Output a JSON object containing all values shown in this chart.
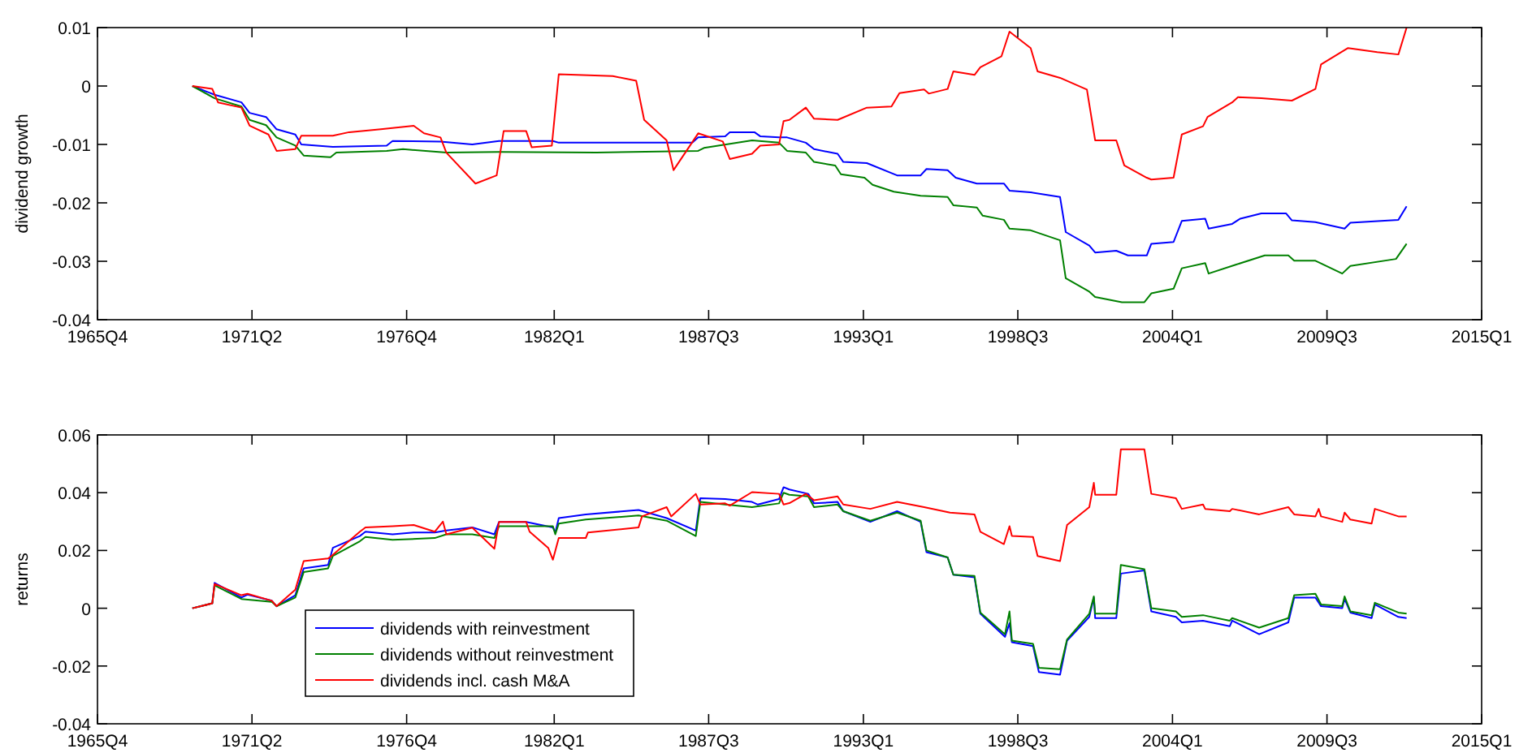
{
  "chart_data": [
    {
      "type": "line",
      "ylabel": "dividend growth",
      "xlim": [
        "1965-10-01",
        "2015-01-01"
      ],
      "ylim": [
        -0.04,
        0.01
      ],
      "yticks": [
        -0.04,
        -0.03,
        -0.02,
        -0.01,
        0,
        0.01
      ],
      "xticks": [
        {
          "value": "1965-10-01",
          "label": "1965Q4"
        },
        {
          "value": "1971-04-01",
          "label": "1971Q2"
        },
        {
          "value": "1976-10-01",
          "label": "1976Q4"
        },
        {
          "value": "1982-01-01",
          "label": "1982Q1"
        },
        {
          "value": "1987-07-01",
          "label": "1987Q3"
        },
        {
          "value": "1993-01-01",
          "label": "1993Q1"
        },
        {
          "value": "1998-07-01",
          "label": "1998Q3"
        },
        {
          "value": "2004-01-01",
          "label": "2004Q1"
        },
        {
          "value": "2009-07-01",
          "label": "2009Q3"
        },
        {
          "value": "2015-01-01",
          "label": "2015Q1"
        }
      ],
      "grid": false,
      "legend": false,
      "marker": "none",
      "line_style": "solid",
      "series": [
        {
          "color": "#0000ff",
          "x": [
            "1969-02-15",
            "1969-12-01",
            "1970-11-15",
            "1971-03-01",
            "1971-10-01",
            "1972-02-15",
            "1972-10-15",
            "1973-01-01",
            "1974-02-15",
            "1976-01-15",
            "1976-04-01",
            "1977-12-15",
            "1979-02-01",
            "1980-01-15",
            "1981-12-15",
            "1982-03-01",
            "1986-12-01",
            "1987-02-15",
            "1988-02-01",
            "1988-04-01",
            "1989-02-15",
            "1989-05-01",
            "1990-01-01",
            "1990-04-15",
            "1990-12-15",
            "1991-04-01",
            "1992-02-01",
            "1992-04-15",
            "1993-02-15",
            "1994-03-15",
            "1995-01-15",
            "1995-04-01",
            "1996-01-01",
            "1996-04-15",
            "1997-01-15",
            "1998-01-01",
            "1998-03-15",
            "1998-12-15",
            "2000-01-01",
            "2000-03-15",
            "2001-01-15",
            "2001-04-01",
            "2002-01-01",
            "2002-06-01",
            "2003-02-01",
            "2003-04-01",
            "2004-01-15",
            "2004-05-01",
            "2005-03-01",
            "2005-04-15",
            "2006-02-15",
            "2006-06-01",
            "2007-03-01",
            "2008-01-15",
            "2008-04-01",
            "2009-02-01",
            "2010-02-15",
            "2010-05-01",
            "2012-01-15",
            "2012-05-01"
          ],
          "values": [
            0,
            -0.0015,
            -0.0028,
            -0.0046,
            -0.0053,
            -0.0074,
            -0.0083,
            -0.01,
            -0.0104,
            -0.0102,
            -0.0094,
            -0.0095,
            -0.01,
            -0.0094,
            -0.0094,
            -0.0097,
            -0.0097,
            -0.0088,
            -0.0086,
            -0.0079,
            -0.0079,
            -0.0086,
            -0.0088,
            -0.0088,
            -0.0097,
            -0.0108,
            -0.0116,
            -0.013,
            -0.0132,
            -0.0153,
            -0.0153,
            -0.0142,
            -0.0144,
            -0.0157,
            -0.0167,
            -0.0167,
            -0.0179,
            -0.0182,
            -0.019,
            -0.025,
            -0.0273,
            -0.0285,
            -0.0282,
            -0.029,
            -0.029,
            -0.027,
            -0.0267,
            -0.0231,
            -0.0227,
            -0.0244,
            -0.0236,
            -0.0227,
            -0.0218,
            -0.0218,
            -0.023,
            -0.0233,
            -0.0244,
            -0.0234,
            -0.0229,
            -0.0206
          ]
        },
        {
          "color": "#008000",
          "x": [
            "1969-02-15",
            "1969-12-01",
            "1970-11-15",
            "1971-03-01",
            "1971-10-01",
            "1972-02-15",
            "1972-10-15",
            "1973-02-01",
            "1974-01-15",
            "1974-04-01",
            "1976-01-15",
            "1976-08-15",
            "1978-03-01",
            "1980-01-15",
            "1983-07-01",
            "1987-02-15",
            "1987-05-01",
            "1989-01-15",
            "1990-01-01",
            "1990-04-15",
            "1990-12-15",
            "1991-04-01",
            "1992-01-01",
            "1992-03-15",
            "1993-01-15",
            "1993-05-01",
            "1994-02-01",
            "1995-01-15",
            "1996-01-01",
            "1996-03-15",
            "1997-01-15",
            "1997-04-01",
            "1998-01-01",
            "1998-03-15",
            "1998-12-15",
            "2000-01-01",
            "2000-03-15",
            "2001-01-15",
            "2001-04-01",
            "2002-03-15",
            "2003-01-01",
            "2003-04-01",
            "2004-01-15",
            "2004-05-01",
            "2005-03-01",
            "2005-04-15",
            "2006-04-01",
            "2007-04-15",
            "2008-02-15",
            "2008-05-01",
            "2009-02-01",
            "2010-01-15",
            "2010-05-01",
            "2011-12-15",
            "2012-05-01"
          ],
          "values": [
            0,
            -0.0021,
            -0.0035,
            -0.0058,
            -0.0067,
            -0.0088,
            -0.0102,
            -0.0119,
            -0.0122,
            -0.0114,
            -0.0111,
            -0.0108,
            -0.0114,
            -0.0113,
            -0.0114,
            -0.0111,
            -0.0106,
            -0.0093,
            -0.0097,
            -0.0111,
            -0.0114,
            -0.013,
            -0.0136,
            -0.0151,
            -0.0157,
            -0.0169,
            -0.0181,
            -0.0188,
            -0.019,
            -0.0204,
            -0.0208,
            -0.0222,
            -0.0229,
            -0.0244,
            -0.0247,
            -0.0264,
            -0.0329,
            -0.0352,
            -0.0361,
            -0.037,
            -0.037,
            -0.0355,
            -0.0347,
            -0.0312,
            -0.0303,
            -0.0321,
            -0.0306,
            -0.029,
            -0.029,
            -0.0299,
            -0.0299,
            -0.0321,
            -0.0308,
            -0.0296,
            -0.027
          ]
        },
        {
          "color": "#ff0000",
          "x": [
            "1969-02-15",
            "1969-11-01",
            "1970-01-15",
            "1970-11-15",
            "1971-03-01",
            "1971-11-01",
            "1972-02-15",
            "1972-10-15",
            "1973-01-01",
            "1974-02-15",
            "1974-09-15",
            "1975-11-01",
            "1977-01-01",
            "1977-05-15",
            "1977-12-15",
            "1978-03-01",
            "1979-03-15",
            "1979-12-15",
            "1980-03-15",
            "1981-01-01",
            "1981-03-15",
            "1981-12-01",
            "1982-03-01",
            "1984-02-01",
            "1984-12-01",
            "1985-03-15",
            "1986-01-01",
            "1986-04-01",
            "1987-02-15",
            "1988-01-01",
            "1988-04-01",
            "1989-01-15",
            "1989-05-01",
            "1990-01-01",
            "1990-03-01",
            "1990-05-15",
            "1990-12-15",
            "1991-04-01",
            "1992-02-01",
            "1993-02-15",
            "1994-01-01",
            "1994-04-15",
            "1995-03-01",
            "1995-05-01",
            "1996-01-01",
            "1996-03-15",
            "1996-12-15",
            "1997-03-01",
            "1997-12-01",
            "1998-03-15",
            "1998-12-15",
            "1999-03-15",
            "2000-01-01",
            "2000-12-15",
            "2001-04-01",
            "2002-01-01",
            "2002-04-15",
            "2003-02-01",
            "2003-04-01",
            "2004-01-15",
            "2004-05-01",
            "2005-02-01",
            "2005-04-01",
            "2006-02-15",
            "2006-05-01",
            "2007-03-01",
            "2008-04-01",
            "2009-02-01",
            "2009-04-15",
            "2010-04-01",
            "2011-04-15",
            "2012-01-15",
            "2012-05-01"
          ],
          "values": [
            0,
            -0.0005,
            -0.0028,
            -0.0037,
            -0.0068,
            -0.0083,
            -0.0111,
            -0.0108,
            -0.0085,
            -0.0085,
            -0.0079,
            -0.0074,
            -0.0068,
            -0.0081,
            -0.0088,
            -0.0114,
            -0.0167,
            -0.0153,
            -0.0077,
            -0.0077,
            -0.0105,
            -0.0102,
            0.002,
            0.0017,
            0.0009,
            -0.0058,
            -0.0093,
            -0.0144,
            -0.0081,
            -0.0095,
            -0.0125,
            -0.0116,
            -0.0102,
            -0.01,
            -0.006,
            -0.0058,
            -0.0037,
            -0.0056,
            -0.0058,
            -0.0037,
            -0.0035,
            -0.0012,
            -0.0006,
            -0.0013,
            -0.0005,
            0.0025,
            0.0019,
            0.0032,
            0.0051,
            0.0093,
            0.0065,
            0.0025,
            0.0014,
            -0.0006,
            -0.0093,
            -0.0093,
            -0.0136,
            -0.0157,
            -0.016,
            -0.0157,
            -0.0083,
            -0.0069,
            -0.0053,
            -0.0028,
            -0.0019,
            -0.0021,
            -0.0025,
            -0.0005,
            0.0037,
            0.0065,
            0.0058,
            0.0054,
            0.01
          ]
        }
      ]
    },
    {
      "type": "line",
      "ylabel": "returns",
      "xlim": [
        "1965-10-01",
        "2015-01-01"
      ],
      "ylim": [
        -0.04,
        0.06
      ],
      "yticks": [
        -0.04,
        -0.02,
        0,
        0.02,
        0.04,
        0.06
      ],
      "xticks": [
        {
          "value": "1965-10-01",
          "label": "1965Q4"
        },
        {
          "value": "1971-04-01",
          "label": "1971Q2"
        },
        {
          "value": "1976-10-01",
          "label": "1976Q4"
        },
        {
          "value": "1982-01-01",
          "label": "1982Q1"
        },
        {
          "value": "1987-07-01",
          "label": "1987Q3"
        },
        {
          "value": "1993-01-01",
          "label": "1993Q1"
        },
        {
          "value": "1998-07-01",
          "label": "1998Q3"
        },
        {
          "value": "2004-01-01",
          "label": "2004Q1"
        },
        {
          "value": "2009-07-01",
          "label": "2009Q3"
        },
        {
          "value": "2015-01-01",
          "label": "2015Q1"
        }
      ],
      "grid": false,
      "legend": "bottom left",
      "marker": "none",
      "line_style": "solid",
      "series": [
        {
          "name": "dividends with reinvestment",
          "color": "#0000ff",
          "x": [
            "1969-02-15",
            "1969-11-01",
            "1969-12-01",
            "1970-11-15",
            "1971-02-01",
            "1971-12-15",
            "1972-02-15",
            "1972-10-15",
            "1973-02-01",
            "1973-12-15",
            "1974-02-15",
            "1975-02-01",
            "1975-04-15",
            "1976-04-01",
            "1977-01-01",
            "1977-10-01",
            "1978-03-01",
            "1979-02-01",
            "1979-11-15",
            "1980-01-15",
            "1981-01-01",
            "1981-12-15",
            "1982-01-15",
            "1982-03-01",
            "1983-02-15",
            "1985-01-01",
            "1986-01-01",
            "1987-01-15",
            "1987-03-15",
            "1988-02-01",
            "1989-01-15",
            "1989-04-01",
            "1990-01-01",
            "1990-03-01",
            "1990-05-15",
            "1991-01-15",
            "1991-04-01",
            "1992-02-01",
            "1992-04-15",
            "1993-04-01",
            "1994-03-15",
            "1995-01-15",
            "1995-04-01",
            "1996-01-01",
            "1996-03-15",
            "1996-12-15",
            "1997-03-01",
            "1998-01-15",
            "1998-03-15",
            "1998-04-15",
            "1999-01-15",
            "1999-04-01",
            "2000-01-01",
            "2000-04-01",
            "2001-01-15",
            "2001-03-15",
            "2001-04-01",
            "2002-01-01",
            "2002-03-01",
            "2003-01-01",
            "2003-04-01",
            "2004-02-15",
            "2004-05-01",
            "2005-02-01",
            "2006-01-15",
            "2006-02-15",
            "2007-02-01",
            "2008-02-15",
            "2008-05-01",
            "2009-02-01",
            "2009-04-15",
            "2010-01-15",
            "2010-02-15",
            "2010-05-01",
            "2011-02-01",
            "2011-03-15",
            "2012-01-15",
            "2012-05-01"
          ],
          "values": [
            0,
            0.0017,
            0.0088,
            0.0037,
            0.0047,
            0.0026,
            0.0007,
            0.0045,
            0.0138,
            0.015,
            0.0209,
            0.025,
            0.0265,
            0.0256,
            0.0262,
            0.0262,
            0.0269,
            0.028,
            0.0256,
            0.0299,
            0.0299,
            0.028,
            0.0262,
            0.0312,
            0.0325,
            0.034,
            0.0312,
            0.0269,
            0.0381,
            0.0378,
            0.0368,
            0.0359,
            0.0378,
            0.0419,
            0.0411,
            0.0396,
            0.0363,
            0.0368,
            0.0336,
            0.0299,
            0.0336,
            0.0299,
            0.0194,
            0.0176,
            0.0116,
            0.0107,
            -0.0019,
            -0.0099,
            -0.0052,
            -0.0118,
            -0.0131,
            -0.0221,
            -0.023,
            -0.0112,
            -0.003,
            0.0037,
            -0.0034,
            -0.0034,
            0.012,
            0.0131,
            -0.0011,
            -0.003,
            -0.0049,
            -0.0043,
            -0.0062,
            -0.0043,
            -0.009,
            -0.0049,
            0.0037,
            0.0037,
            0.0007,
            0,
            0.0032,
            -0.0015,
            -0.0034,
            0.0013,
            -0.003,
            -0.0034
          ]
        },
        {
          "name": "dividends without reinvestment",
          "color": "#008000",
          "x": [
            "1969-02-15",
            "1969-11-01",
            "1969-12-01",
            "1970-11-15",
            "1971-12-15",
            "1972-02-15",
            "1972-10-15",
            "1973-02-01",
            "1973-12-15",
            "1974-02-15",
            "1975-02-01",
            "1975-04-15",
            "1976-04-01",
            "1977-10-01",
            "1978-03-01",
            "1979-02-01",
            "1979-11-15",
            "1980-01-15",
            "1981-12-15",
            "1982-01-15",
            "1982-03-01",
            "1983-02-15",
            "1985-01-01",
            "1986-01-01",
            "1987-01-15",
            "1987-03-15",
            "1988-02-01",
            "1989-01-15",
            "1990-01-01",
            "1990-03-01",
            "1990-05-15",
            "1991-01-15",
            "1991-04-01",
            "1992-02-01",
            "1992-04-15",
            "1993-04-01",
            "1994-03-15",
            "1995-01-15",
            "1995-04-01",
            "1996-01-01",
            "1996-03-15",
            "1996-12-15",
            "1997-03-01",
            "1998-01-15",
            "1998-03-15",
            "1998-04-15",
            "1999-01-15",
            "1999-04-01",
            "2000-01-01",
            "2000-04-01",
            "2001-01-15",
            "2001-03-15",
            "2001-04-01",
            "2002-01-01",
            "2002-03-01",
            "2003-01-01",
            "2003-04-01",
            "2004-02-15",
            "2004-05-01",
            "2005-02-01",
            "2006-01-15",
            "2006-02-15",
            "2007-02-01",
            "2008-02-15",
            "2008-05-01",
            "2009-02-01",
            "2009-04-15",
            "2010-01-15",
            "2010-02-15",
            "2010-05-01",
            "2011-02-01",
            "2011-03-15",
            "2012-01-15",
            "2012-05-01"
          ],
          "values": [
            0,
            0.0017,
            0.0079,
            0.0032,
            0.0022,
            0.0007,
            0.0037,
            0.0125,
            0.0138,
            0.0181,
            0.0232,
            0.0247,
            0.0237,
            0.0243,
            0.0256,
            0.0256,
            0.0243,
            0.0284,
            0.0284,
            0.0256,
            0.0293,
            0.0307,
            0.0321,
            0.0303,
            0.025,
            0.0368,
            0.0359,
            0.035,
            0.0363,
            0.04,
            0.0393,
            0.0387,
            0.035,
            0.0359,
            0.0336,
            0.0303,
            0.0331,
            0.0303,
            0.02,
            0.0176,
            0.0116,
            0.0112,
            -0.0015,
            -0.009,
            -0.0011,
            -0.0112,
            -0.0123,
            -0.0206,
            -0.0211,
            -0.0108,
            -0.0019,
            0.0041,
            -0.0019,
            -0.0019,
            0.015,
            0.0135,
            0,
            -0.0011,
            -0.003,
            -0.0024,
            -0.0043,
            -0.0034,
            -0.0067,
            -0.0034,
            0.0045,
            0.005,
            0.0013,
            0.0007,
            0.0041,
            -0.0011,
            -0.0024,
            0.0019,
            -0.0015,
            -0.0019
          ]
        },
        {
          "name": "dividends incl. cash M&A",
          "color": "#ff0000",
          "x": [
            "1969-02-15",
            "1969-11-01",
            "1969-12-01",
            "1970-11-15",
            "1971-02-01",
            "1971-12-15",
            "1972-02-15",
            "1972-10-15",
            "1973-02-01",
            "1973-12-15",
            "1974-02-15",
            "1975-02-01",
            "1975-04-15",
            "1976-04-01",
            "1977-01-01",
            "1977-10-01",
            "1978-01-15",
            "1978-03-01",
            "1979-02-01",
            "1979-11-15",
            "1980-01-15",
            "1981-01-01",
            "1981-02-15",
            "1981-10-15",
            "1981-12-15",
            "1982-03-01",
            "1983-02-15",
            "1983-03-15",
            "1985-01-01",
            "1985-02-15",
            "1986-01-01",
            "1986-03-01",
            "1987-01-15",
            "1987-03-15",
            "1988-02-01",
            "1988-04-01",
            "1989-01-15",
            "1990-01-01",
            "1990-03-01",
            "1990-05-15",
            "1990-12-15",
            "1991-04-01",
            "1992-02-01",
            "1992-04-15",
            "1993-04-01",
            "1994-03-15",
            "1995-03-01",
            "1996-02-01",
            "1996-12-15",
            "1997-03-01",
            "1998-01-01",
            "1998-03-15",
            "1998-04-15",
            "1999-01-15",
            "1999-03-15",
            "2000-01-01",
            "2000-04-01",
            "2001-01-15",
            "2001-03-15",
            "2001-04-01",
            "2002-01-01",
            "2002-03-01",
            "2003-01-01",
            "2003-04-01",
            "2004-02-15",
            "2004-05-01",
            "2005-02-01",
            "2005-03-01",
            "2006-01-15",
            "2006-02-15",
            "2007-02-01",
            "2008-02-15",
            "2008-05-01",
            "2009-02-01",
            "2009-03-15",
            "2009-04-15",
            "2010-01-15",
            "2010-02-15",
            "2010-05-01",
            "2011-02-01",
            "2011-03-15",
            "2012-01-15",
            "2012-05-01"
          ],
          "values": [
            0,
            0.0017,
            0.0084,
            0.0045,
            0.005,
            0.0026,
            0.0007,
            0.0064,
            0.0163,
            0.0172,
            0.0185,
            0.0265,
            0.028,
            0.0284,
            0.0288,
            0.0265,
            0.03,
            0.0256,
            0.0279,
            0.0206,
            0.0299,
            0.0299,
            0.0265,
            0.0209,
            0.0168,
            0.0243,
            0.0243,
            0.0262,
            0.028,
            0.0318,
            0.035,
            0.0318,
            0.0396,
            0.0359,
            0.0363,
            0.0355,
            0.0402,
            0.0396,
            0.0359,
            0.0364,
            0.0396,
            0.0374,
            0.0387,
            0.0359,
            0.0344,
            0.0368,
            0.035,
            0.0331,
            0.0325,
            0.0265,
            0.0222,
            0.0284,
            0.025,
            0.0247,
            0.0181,
            0.0163,
            0.0288,
            0.035,
            0.0434,
            0.0393,
            0.0393,
            0.055,
            0.055,
            0.0396,
            0.0381,
            0.0344,
            0.0359,
            0.0344,
            0.0336,
            0.0344,
            0.0325,
            0.035,
            0.0325,
            0.0318,
            0.0344,
            0.0318,
            0.0299,
            0.0331,
            0.0307,
            0.0293,
            0.0344,
            0.0318,
            0.0318
          ]
        }
      ]
    }
  ]
}
